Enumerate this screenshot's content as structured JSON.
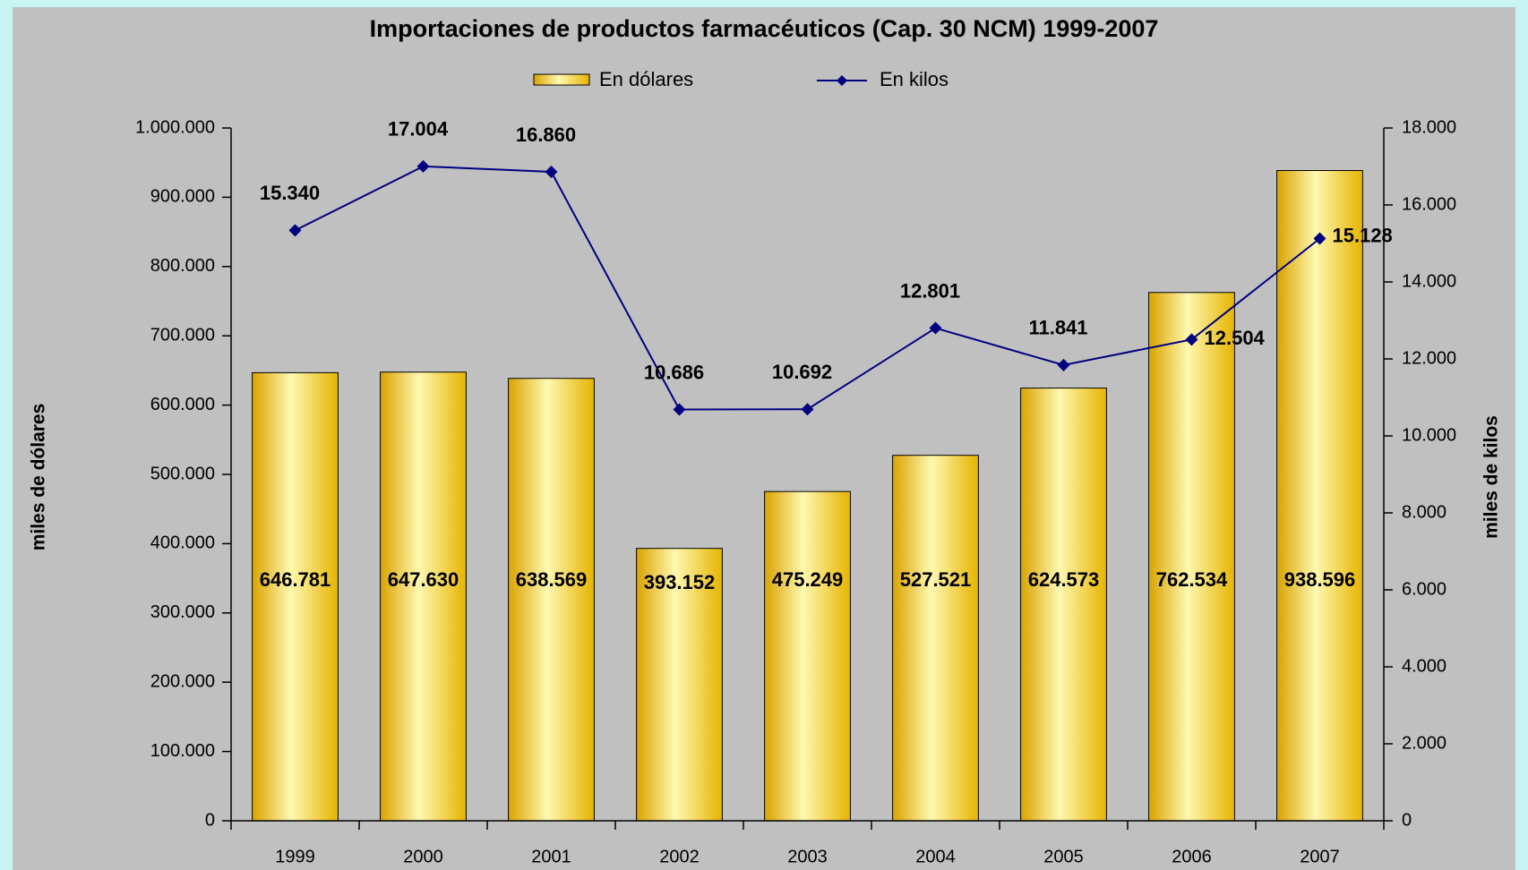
{
  "chart_data": {
    "type": "bar_line",
    "title": "Importaciones de productos farmacéuticos (Cap. 30 NCM) 1999-2007",
    "categories": [
      "1999",
      "2000",
      "2001",
      "2002",
      "2003",
      "2004",
      "2005",
      "2006",
      "2007"
    ],
    "series": [
      {
        "name": "En dólares",
        "type": "bar",
        "color": "#f5c400",
        "values": [
          646781,
          647630,
          638569,
          393152,
          475249,
          527521,
          624573,
          762534,
          938596
        ],
        "value_labels": [
          "646.781",
          "647.630",
          "638.569",
          "393.152",
          "475.249",
          "527.521",
          "624.573",
          "762.534",
          "938.596"
        ]
      },
      {
        "name": "En kilos",
        "type": "line",
        "axis": "y2",
        "color": "#000080",
        "values": [
          15340,
          17004,
          16860,
          10686,
          10692,
          12801,
          11841,
          12504,
          15128
        ],
        "value_labels": [
          "15.340",
          "17.004",
          "16.860",
          "10.686",
          "10.692",
          "12.801",
          "11.841",
          "12.504",
          "15.128"
        ]
      }
    ],
    "ylabel": "miles de dólares",
    "y2label": "miles de kilos",
    "ylim": [
      0,
      1000000
    ],
    "yticks": [
      0,
      {
        "value": 100000,
        "label": "100.000"
      },
      {
        "value": 200000,
        "label": "200.000"
      },
      {
        "value": 300000,
        "label": "300.000"
      },
      {
        "value": 400000,
        "label": "400.000"
      },
      {
        "value": 500000,
        "label": "500.000"
      },
      {
        "value": 600000,
        "label": "600.000"
      },
      {
        "value": 700000,
        "label": "700.000"
      },
      {
        "value": 800000,
        "label": "800.000"
      },
      {
        "value": 900000,
        "label": "900.000"
      },
      {
        "value": 1000000,
        "label": "1.000.000"
      }
    ],
    "y2lim": [
      0,
      18000
    ],
    "y2ticks": [
      0,
      {
        "value": 2000,
        "label": "2.000"
      },
      {
        "value": 4000,
        "label": "4.000"
      },
      {
        "value": 6000,
        "label": "6.000"
      },
      {
        "value": 8000,
        "label": "8.000"
      },
      {
        "value": 10000,
        "label": "10.000"
      },
      {
        "value": 12000,
        "label": "12.000"
      },
      {
        "value": 14000,
        "label": "14.000"
      },
      {
        "value": 16000,
        "label": "16.000"
      },
      {
        "value": 18000,
        "label": "18.000"
      }
    ],
    "label_color": "#1a1aff",
    "grid": false,
    "legend": "top"
  }
}
